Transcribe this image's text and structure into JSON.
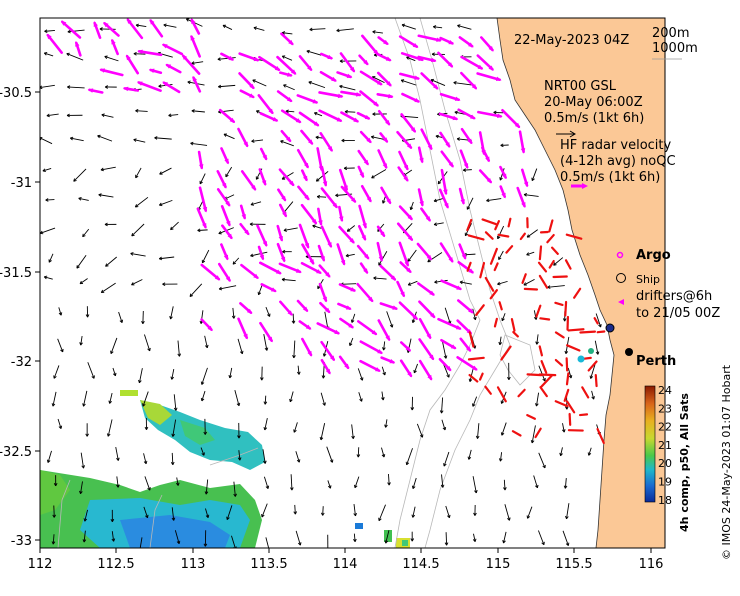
{
  "map": {
    "title_date": "22-May-2023 04Z",
    "x_ticks": [
      "112",
      "112.5",
      "113",
      "113.5",
      "114",
      "114.5",
      "115",
      "115.5",
      "116"
    ],
    "y_ticks": [
      "-30.5",
      "-31",
      "-31.5",
      "-32",
      "-32.5",
      "-33"
    ],
    "lon_range": [
      112,
      116.1
    ],
    "lat_range": [
      -30.0,
      -33.1
    ]
  },
  "isobath_legend": {
    "line1": "200m",
    "line2": "1000m"
  },
  "model_legend": {
    "name": "NRT00 GSL",
    "date": "20-May 06:00Z",
    "scale": "0.5m/s (1kt 6h)"
  },
  "radar_legend": {
    "title": "HF radar velocity",
    "subtitle": "(4-12h avg) noQC",
    "scale": "0.5m/s (1kt 6h)",
    "color": "#ff00ff"
  },
  "markers_legend": {
    "argo": "Argo",
    "ship": "Ship",
    "drifters_line1": "drifters@6h",
    "drifters_line2": "to 21/05 00Z"
  },
  "city": {
    "label": "Perth",
    "lon": 115.86,
    "lat": -31.95
  },
  "colorbar": {
    "ticks": [
      "24",
      "23",
      "22",
      "21",
      "20",
      "19",
      "18"
    ],
    "label": "4h comp, p50, All Sats",
    "colors": [
      "#8b1a00",
      "#d8641a",
      "#e8b020",
      "#c8d830",
      "#4ac84a",
      "#20b8c8",
      "#1a6ad0",
      "#0a2a9a"
    ]
  },
  "credit": "© IMOS 24-May-2023 01:07 Hobart",
  "colors": {
    "land": "#fbc896",
    "radar_arrow": "#ff00ff",
    "radar_red": "#ee1111",
    "model_arrow": "#000000"
  }
}
